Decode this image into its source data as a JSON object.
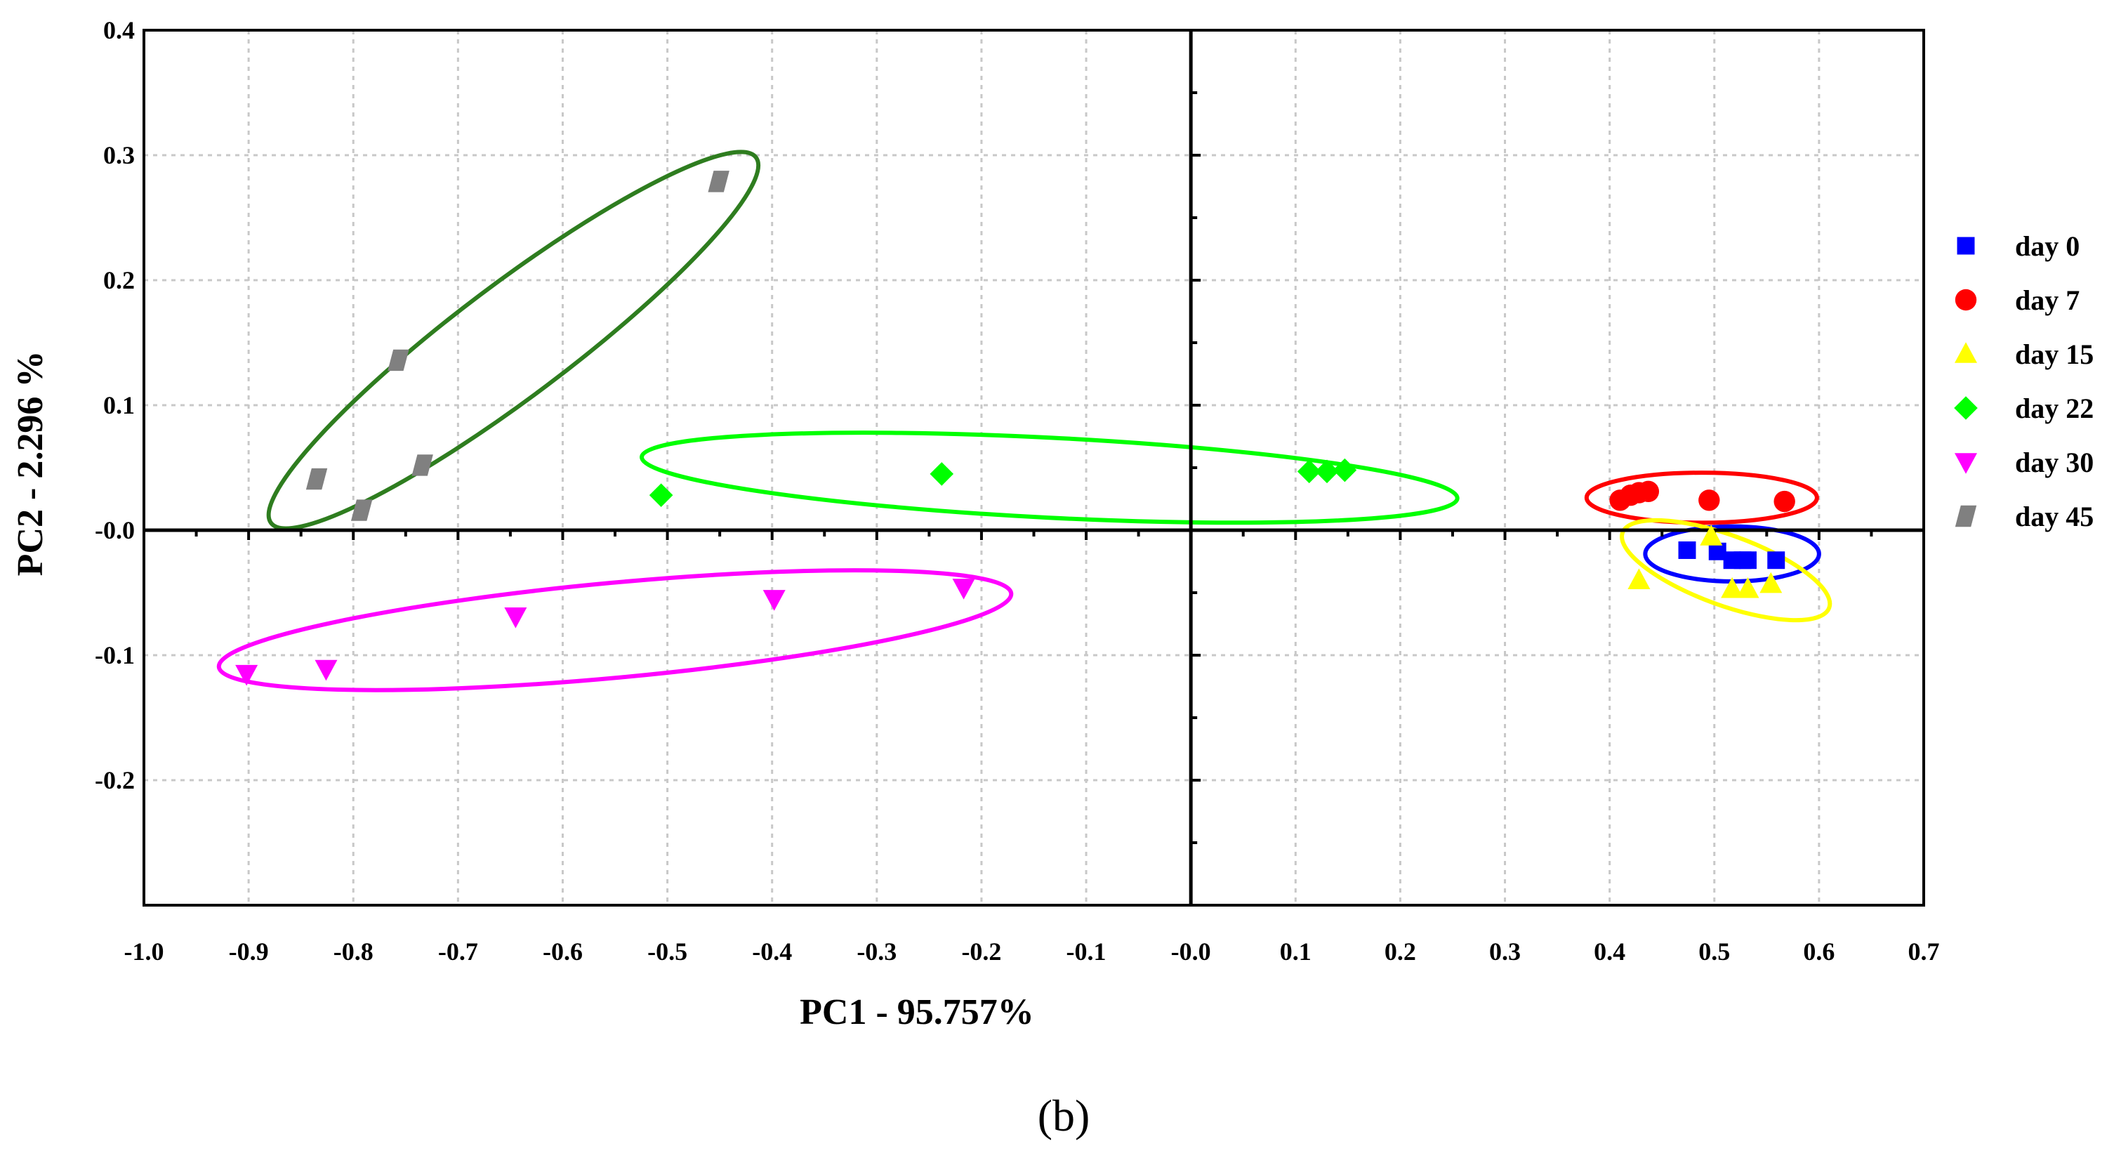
{
  "chart_data": {
    "type": "scatter",
    "title": "",
    "xlabel": "PC1 - 95.757%",
    "ylabel": "PC2 - 2.296 %",
    "xlim": [
      -1.0,
      0.7
    ],
    "ylim": [
      -0.3,
      0.4
    ],
    "x_ticks": [
      -1.0,
      -0.9,
      -0.8,
      -0.7,
      -0.6,
      -0.5,
      -0.4,
      -0.3,
      -0.2,
      -0.1,
      0.0,
      0.1,
      0.2,
      0.3,
      0.4,
      0.5,
      0.6,
      0.7
    ],
    "x_tick_labels": [
      "-1.0",
      "-0.9",
      "-0.8",
      "-0.7",
      "-0.6",
      "-0.5",
      "-0.4",
      "-0.3",
      "-0.2",
      "-0.1",
      "-0.0",
      "0.1",
      "0.2",
      "0.3",
      "0.4",
      "0.5",
      "0.6",
      "0.7"
    ],
    "y_ticks": [
      0.4,
      0.3,
      0.2,
      0.1,
      0.0,
      -0.1,
      -0.2
    ],
    "y_tick_labels": [
      "0.4",
      "0.3",
      "0.2",
      "0.1",
      "-0.0",
      "-0.1",
      "-0.2"
    ],
    "grid": true,
    "legend_position": "right",
    "panel_label": "(b)",
    "series": [
      {
        "name": "day 0",
        "color": "#0000ff",
        "marker": "square",
        "points": [
          [
            0.474,
            -0.016
          ],
          [
            0.503,
            -0.017
          ],
          [
            0.517,
            -0.024
          ],
          [
            0.527,
            -0.024
          ],
          [
            0.532,
            -0.024
          ],
          [
            0.559,
            -0.024
          ]
        ],
        "ellipse": {
          "center": [
            0.517,
            -0.019
          ],
          "semi_axes": [
            0.083,
            0.022
          ],
          "angle_deg": 0,
          "color": "#0000ff"
        }
      },
      {
        "name": "day 7",
        "color": "#ff0000",
        "marker": "circle",
        "points": [
          [
            0.41,
            0.024
          ],
          [
            0.42,
            0.028
          ],
          [
            0.428,
            0.03
          ],
          [
            0.437,
            0.031
          ],
          [
            0.495,
            0.024
          ],
          [
            0.567,
            0.023
          ]
        ],
        "ellipse": {
          "center": [
            0.488,
            0.026
          ],
          "semi_axes": [
            0.11,
            0.02
          ],
          "angle_deg": 0,
          "color": "#ff0000"
        }
      },
      {
        "name": "day 15",
        "color": "#ffff00",
        "marker": "triangle-up",
        "points": [
          [
            0.428,
            -0.04
          ],
          [
            0.497,
            -0.005
          ],
          [
            0.517,
            -0.047
          ],
          [
            0.532,
            -0.047
          ],
          [
            0.554,
            -0.043
          ]
        ],
        "ellipse": {
          "center": [
            0.511,
            -0.032
          ],
          "semi_axes": [
            0.105,
            0.028
          ],
          "angle_deg": -20,
          "color": "#ffff00"
        }
      },
      {
        "name": "day 22",
        "color": "#00ff00",
        "marker": "diamond",
        "points": [
          [
            -0.506,
            0.028
          ],
          [
            -0.238,
            0.045
          ],
          [
            0.113,
            0.047
          ],
          [
            0.13,
            0.047
          ],
          [
            0.147,
            0.048
          ]
        ],
        "ellipse": {
          "center": [
            -0.135,
            0.042
          ],
          "semi_axes": [
            0.39,
            0.032
          ],
          "angle_deg": -2.9,
          "color": "#00ff00"
        }
      },
      {
        "name": "day 30",
        "color": "#ff00ff",
        "marker": "triangle-down",
        "points": [
          [
            -0.902,
            -0.115
          ],
          [
            -0.826,
            -0.111
          ],
          [
            -0.645,
            -0.069
          ],
          [
            -0.398,
            -0.055
          ],
          [
            -0.217,
            -0.046
          ]
        ],
        "ellipse": {
          "center": [
            -0.55,
            -0.08
          ],
          "semi_axes": [
            0.38,
            0.038
          ],
          "angle_deg": 5.3,
          "color": "#ff00ff"
        }
      },
      {
        "name": "day 45",
        "color": "#808080",
        "marker": "parallelogram",
        "points": [
          [
            -0.835,
            0.041
          ],
          [
            -0.792,
            0.016
          ],
          [
            -0.757,
            0.136
          ],
          [
            -0.734,
            0.052
          ],
          [
            -0.451,
            0.279
          ]
        ],
        "ellipse": {
          "center": [
            -0.647,
            0.152
          ],
          "semi_axes": [
            0.29,
            0.045
          ],
          "angle_deg": 37,
          "color": "#2e7d1f"
        }
      }
    ]
  }
}
